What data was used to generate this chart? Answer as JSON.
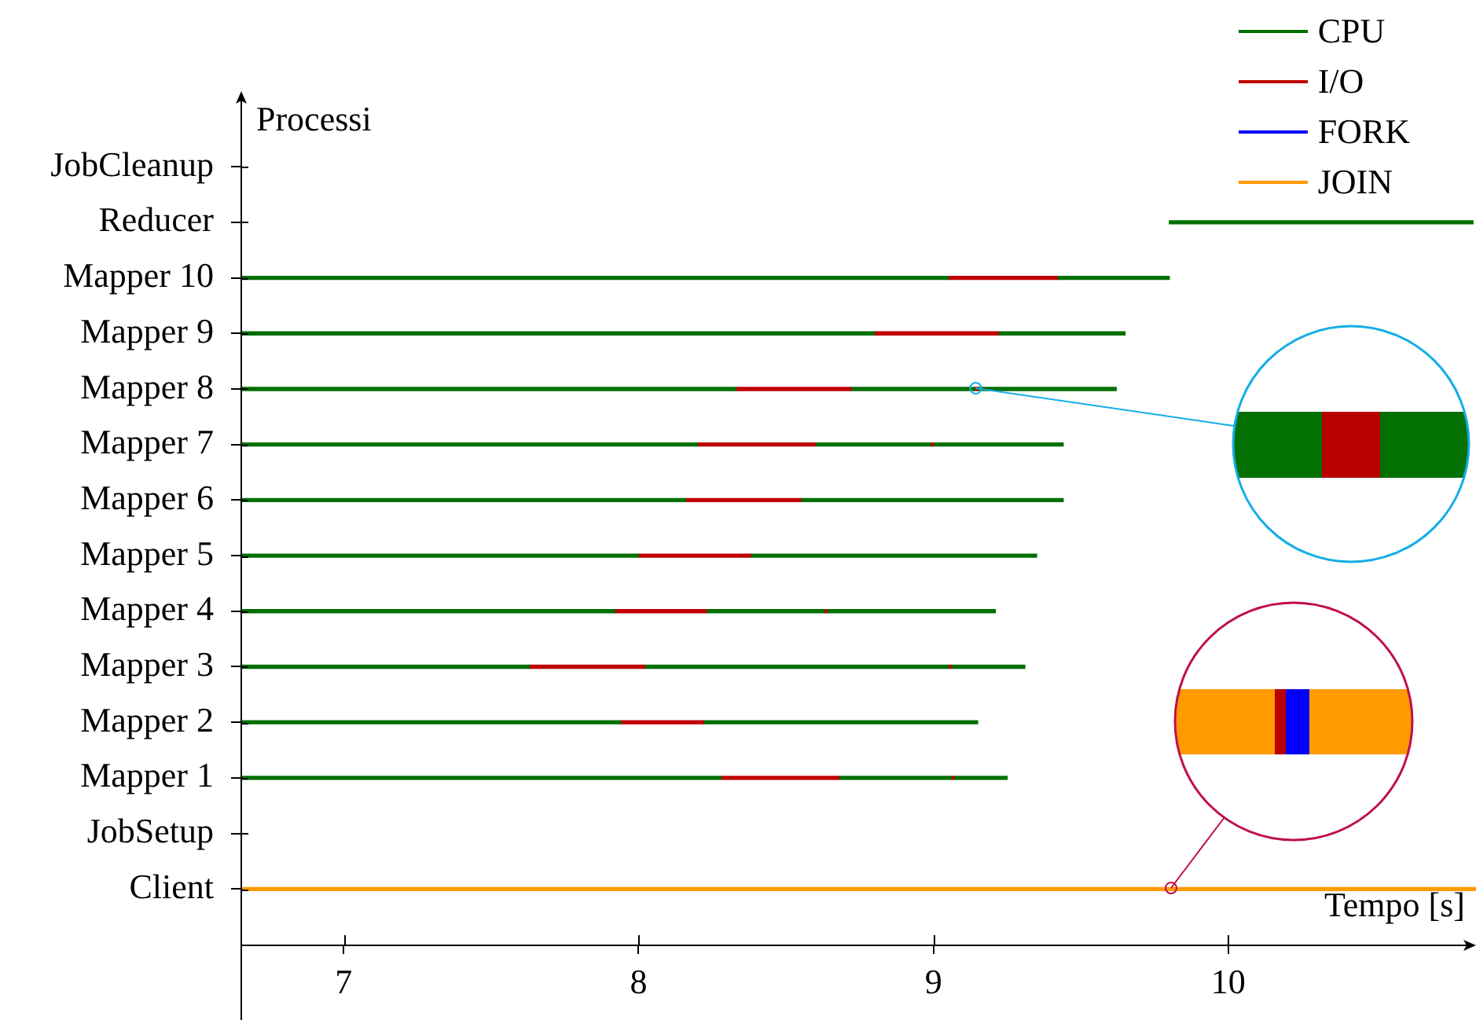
{
  "chart_data": {
    "type": "bar",
    "orientation": "horizontal",
    "stacked": true,
    "xlabel": "Tempo [s]",
    "ylabel": "Processi",
    "categories": [
      "JobCleanup",
      "Reducer",
      "Mapper 10",
      "Mapper 9",
      "Mapper 8",
      "Mapper 7",
      "Mapper 6",
      "Mapper 5",
      "Mapper 4",
      "Mapper 3",
      "Mapper 2",
      "Mapper 1",
      "JobSetup",
      "Client"
    ],
    "series": [
      {
        "name": "CPU",
        "color": "#007000",
        "values": [
          null,
          null,
          9.05,
          8.8,
          8.33,
          8.2,
          8.16,
          8.0,
          7.92,
          7.63,
          7.94,
          8.28,
          null,
          null
        ]
      },
      {
        "name": "I/O",
        "color": "#c00000",
        "base": [
          null,
          null,
          null,
          null,
          null,
          null,
          null,
          null,
          null,
          null,
          null,
          null,
          null,
          null
        ],
        "values": [
          null,
          null,
          0.37,
          0.42,
          0.39,
          0.4,
          0.39,
          0.38,
          0.31,
          0.39,
          0.28,
          0.4,
          null,
          null
        ]
      },
      {
        "color": "#007000",
        "base": [
          null,
          9.8,
          null,
          null,
          null,
          null,
          null,
          null,
          null,
          null,
          null,
          null,
          null,
          null
        ],
        "values": [
          null,
          1.03,
          0.38,
          0.43,
          0.42,
          0.39,
          0.89,
          0.97,
          0.4,
          1.03,
          0.93,
          0.38,
          null,
          null
        ]
      },
      {
        "color": "#c00000",
        "base": [
          null,
          null,
          null,
          null,
          null,
          null,
          null,
          null,
          null,
          null,
          null,
          null,
          null,
          null
        ],
        "values": [
          null,
          null,
          null,
          null,
          0.01,
          0.01,
          null,
          null,
          0.01,
          0.01,
          null,
          0.01,
          null,
          null
        ]
      },
      {
        "color": "#007000",
        "base": [
          null,
          null,
          null,
          null,
          null,
          null,
          null,
          null,
          null,
          null,
          null,
          null,
          null,
          null
        ],
        "values": [
          null,
          null,
          null,
          null,
          0.47,
          0.44,
          null,
          null,
          0.57,
          0.25,
          null,
          0.18,
          null,
          null
        ]
      },
      {
        "name": "FORK",
        "color": "#0000ff",
        "values": [
          null,
          null,
          null,
          null,
          null,
          null,
          null,
          null,
          null,
          null,
          null,
          null,
          null,
          null
        ]
      },
      {
        "name": "JOIN",
        "color": "#ff9900",
        "values": [
          null,
          null,
          null,
          null,
          null,
          null,
          null,
          null,
          null,
          null,
          null,
          null,
          null,
          10.84
        ]
      }
    ],
    "xlim": [
      6.65,
      10.84
    ],
    "xticks": [
      7,
      8,
      9,
      10
    ],
    "legend": "top right"
  }
}
